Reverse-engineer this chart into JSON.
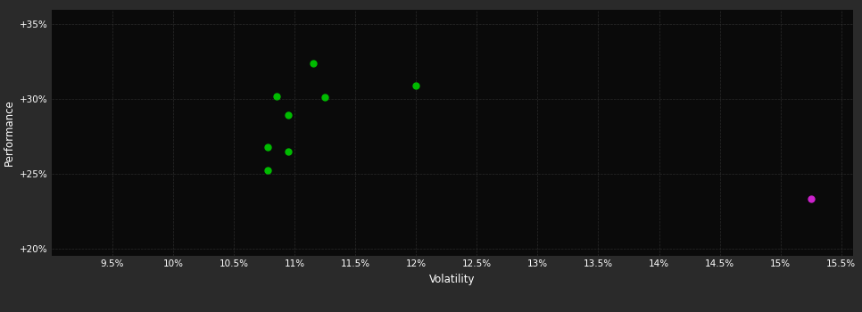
{
  "background_color": "#2a2a2a",
  "plot_bg_color": "#0a0a0a",
  "grid_color": "#404040",
  "text_color": "#ffffff",
  "xlabel": "Volatility",
  "ylabel": "Performance",
  "xlim": [
    0.09,
    0.156
  ],
  "ylim": [
    0.195,
    0.36
  ],
  "xticks": [
    0.095,
    0.1,
    0.105,
    0.11,
    0.115,
    0.12,
    0.125,
    0.13,
    0.135,
    0.14,
    0.145,
    0.15,
    0.155
  ],
  "yticks": [
    0.2,
    0.25,
    0.3,
    0.35
  ],
  "ytick_labels": [
    "+20%",
    "+25%",
    "+30%",
    "+35%"
  ],
  "xtick_labels": [
    "9.5%",
    "10%",
    "10.5%",
    "11%",
    "11.5%",
    "12%",
    "12.5%",
    "13%",
    "13.5%",
    "14%",
    "14.5%",
    "15%",
    "15.5%"
  ],
  "green_points": [
    [
      0.1085,
      0.302
    ],
    [
      0.1115,
      0.324
    ],
    [
      0.1125,
      0.301
    ],
    [
      0.1095,
      0.289
    ],
    [
      0.1078,
      0.268
    ],
    [
      0.1095,
      0.265
    ],
    [
      0.1078,
      0.252
    ],
    [
      0.12,
      0.309
    ]
  ],
  "magenta_points": [
    [
      0.1525,
      0.233
    ]
  ],
  "green_color": "#00bb00",
  "magenta_color": "#cc22cc",
  "marker_size": 5,
  "marker_style": "o"
}
